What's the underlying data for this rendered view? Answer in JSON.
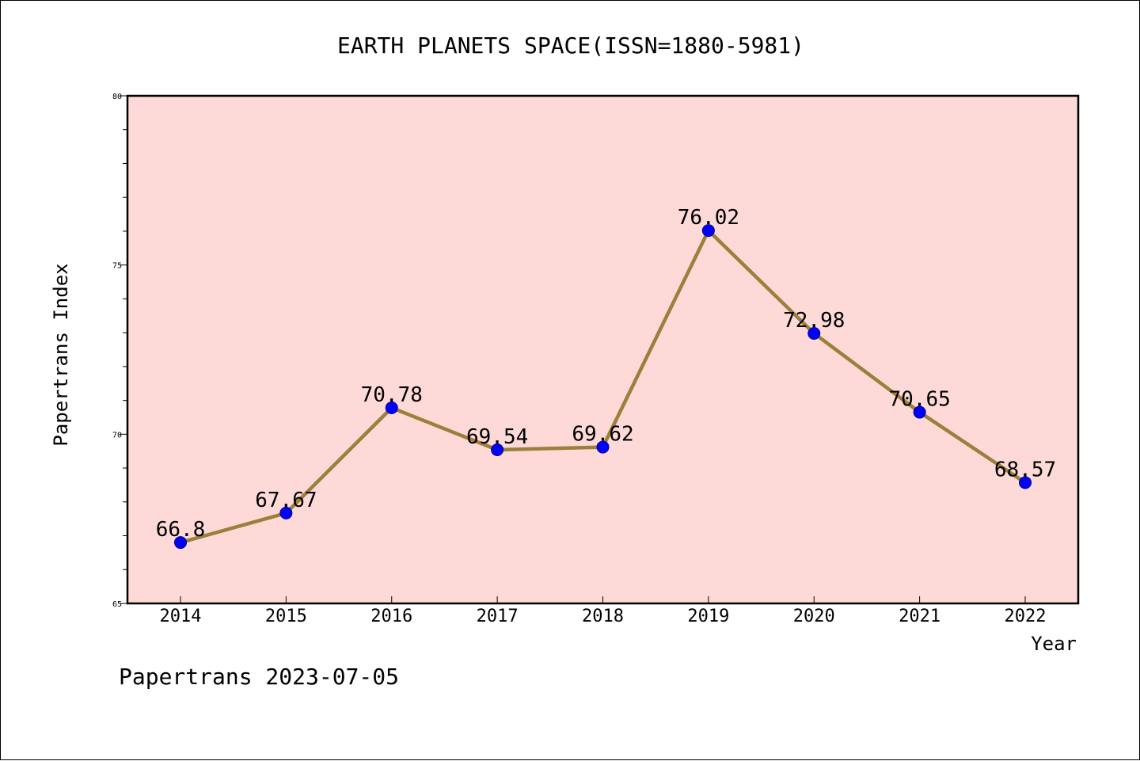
{
  "chart_data": {
    "type": "line",
    "title": "EARTH PLANETS SPACE(ISSN=1880-5981)",
    "xlabel": "Year",
    "ylabel": "Papertrans Index",
    "categories": [
      "2014",
      "2015",
      "2016",
      "2017",
      "2018",
      "2019",
      "2020",
      "2021",
      "2022"
    ],
    "series": [
      {
        "values": [
          66.8,
          67.67,
          70.78,
          69.54,
          69.62,
          76.02,
          72.98,
          70.65,
          68.57
        ],
        "labels": [
          "66.8",
          "67.67",
          "70.78",
          "69.54",
          "69.62",
          "76.02",
          "72.98",
          "70.65",
          "68.57"
        ]
      }
    ],
    "ylim": [
      65,
      80
    ],
    "y_ticks": [
      "65",
      "70",
      "75",
      "80"
    ],
    "grid": false,
    "legend": "none"
  },
  "footer": {
    "text": "Papertrans 2023-07-05"
  },
  "colors": {
    "plot_background": "#FDDAD7",
    "line": "#9B7F3A",
    "marker": "#0000FF",
    "marker_edge": "#00008B"
  }
}
